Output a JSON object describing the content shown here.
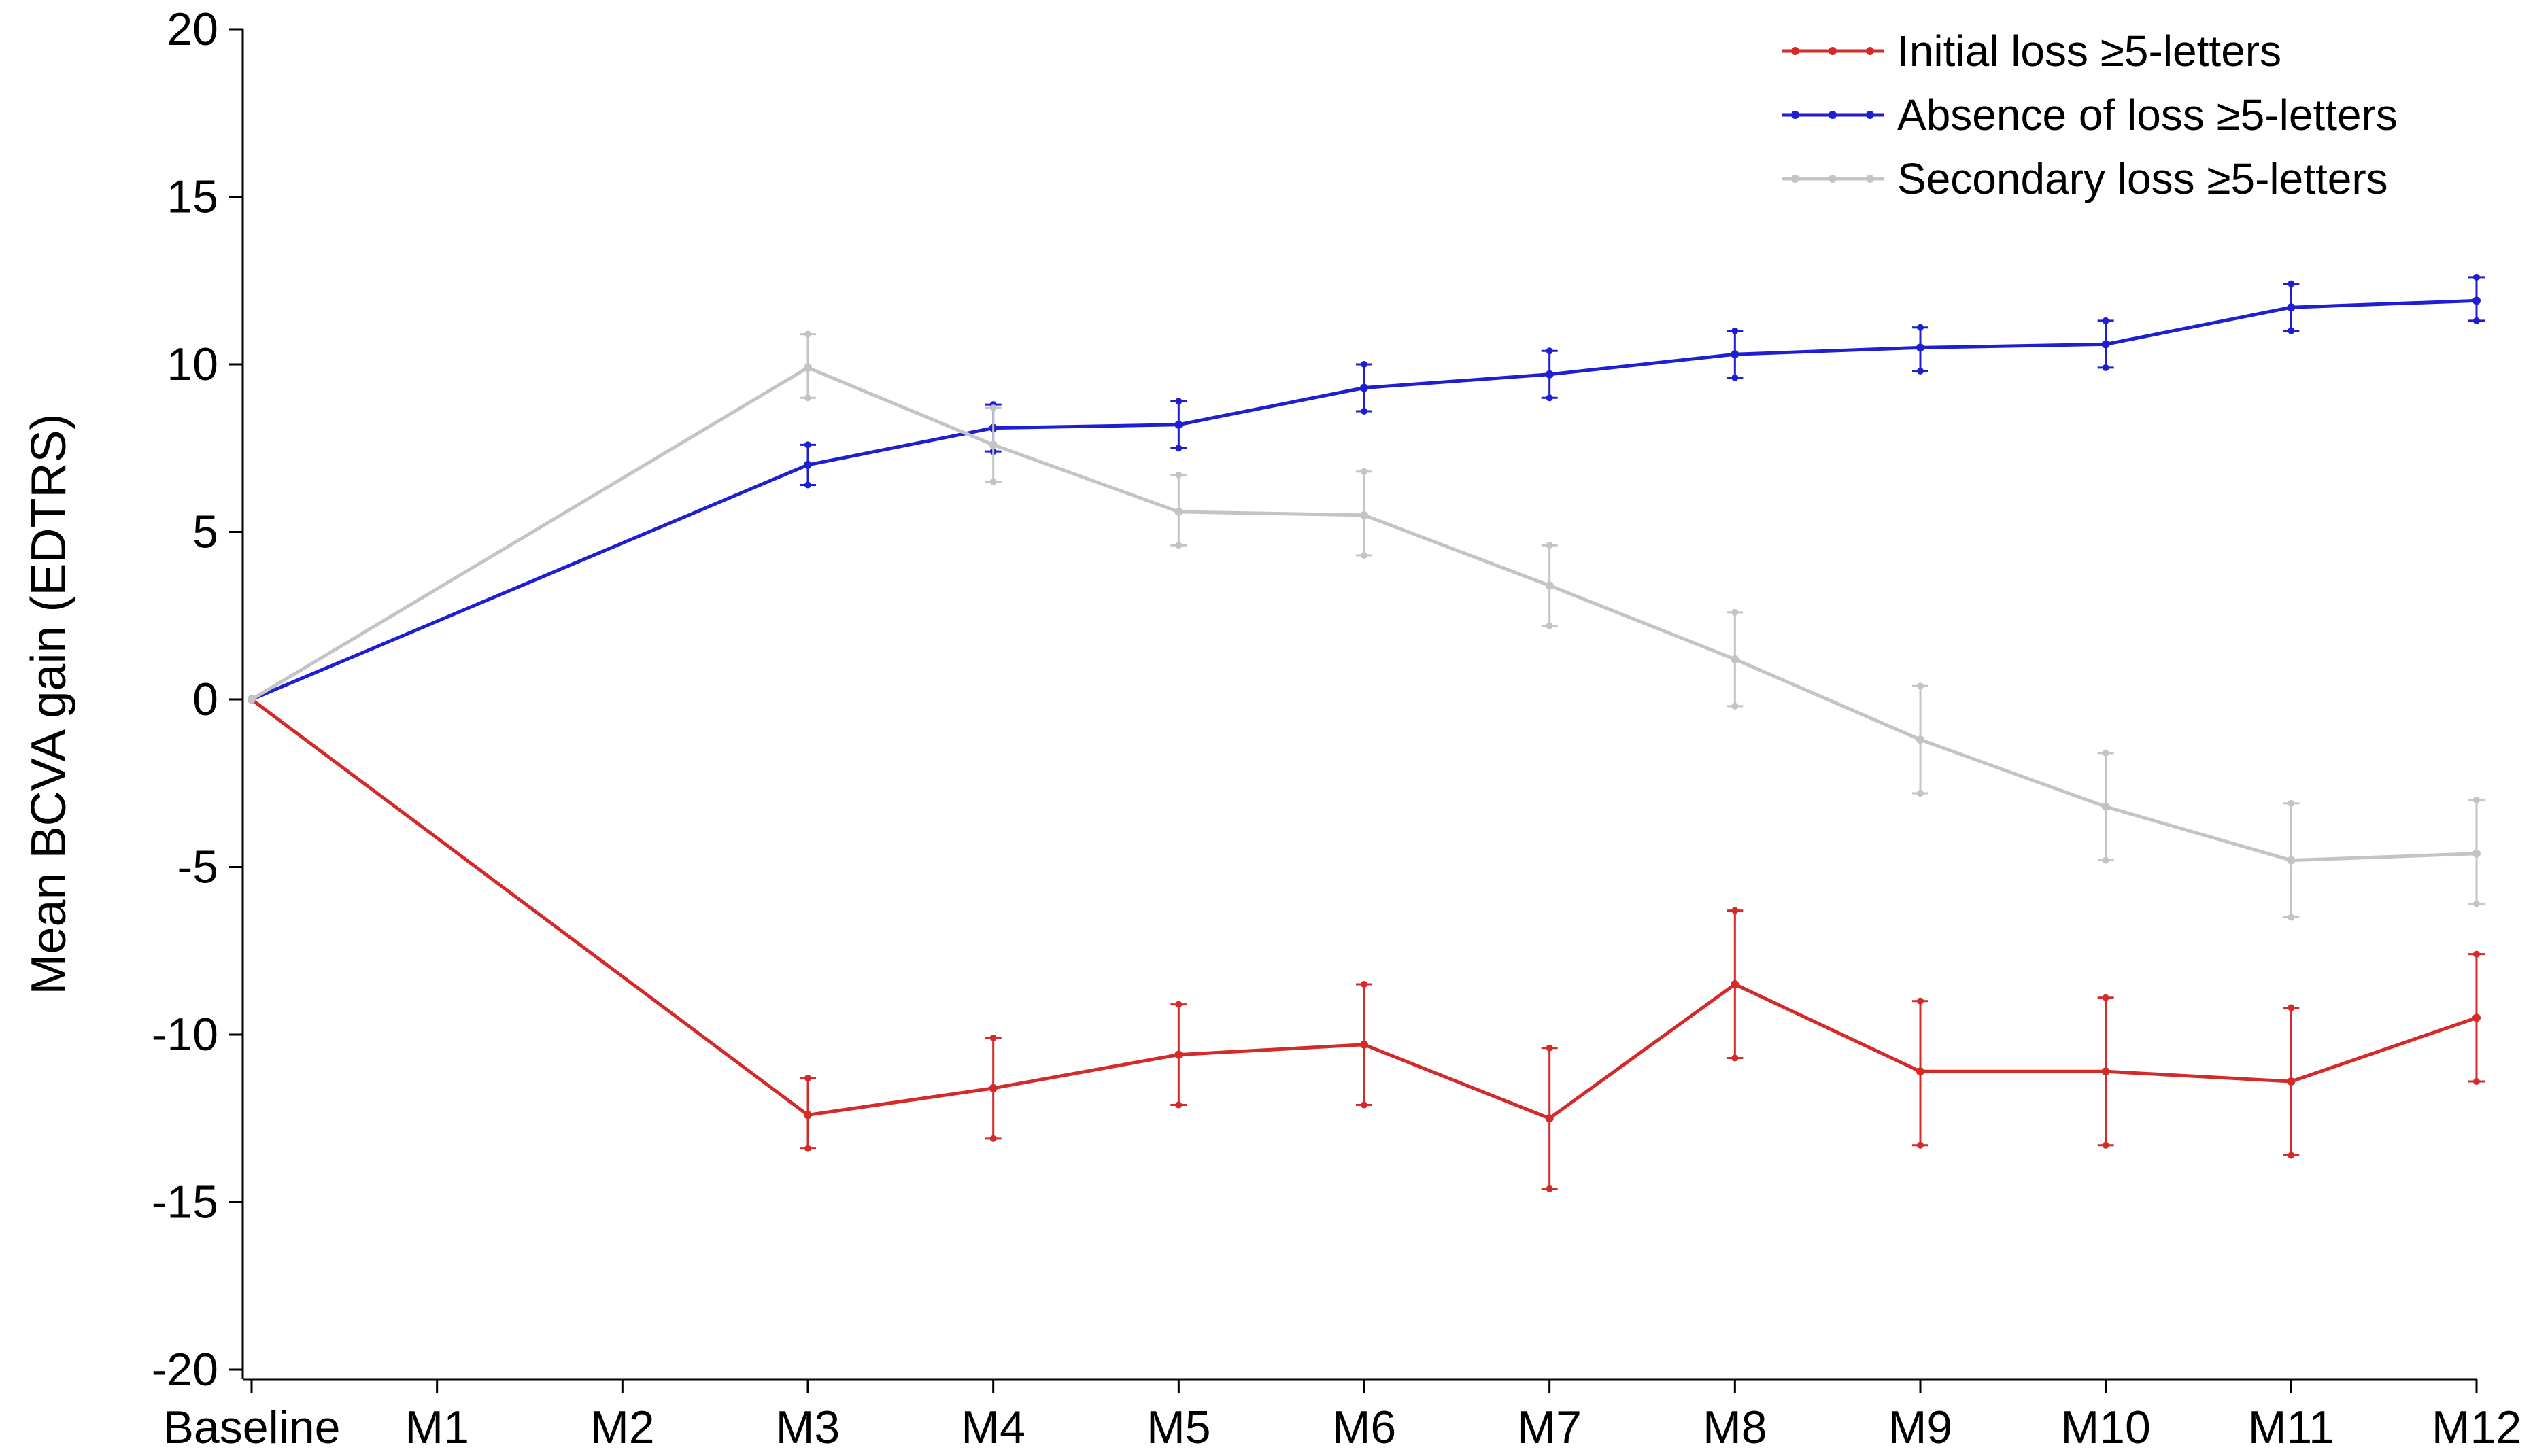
{
  "chart_data": {
    "type": "line",
    "title": "",
    "xlabel": "",
    "ylabel": "Mean BCVA gain (EDTRS)",
    "categories": [
      "Baseline",
      "M1",
      "M2",
      "M3",
      "M4",
      "M5",
      "M6",
      "M7",
      "M8",
      "M9",
      "M10",
      "M11",
      "M12"
    ],
    "yticks": [
      20,
      15,
      10,
      5,
      0,
      -5,
      -10,
      -15,
      -20
    ],
    "ytick_labels": [
      "20",
      "15",
      "10",
      "5",
      "0",
      "-5",
      "-10",
      "-15",
      "-20"
    ],
    "ylim": [
      -20,
      20
    ],
    "grid": false,
    "legend_position": "top-right",
    "series": [
      {
        "name": "Initial loss ≥5-letters",
        "color": "#d42a2a",
        "points": [
          {
            "x": "Baseline",
            "y": 0
          },
          {
            "x": "M3",
            "y": -12.4,
            "low": -13.4,
            "high": -11.3
          },
          {
            "x": "M4",
            "y": -11.6,
            "low": -13.1,
            "high": -10.1
          },
          {
            "x": "M5",
            "y": -10.6,
            "low": -12.1,
            "high": -9.1
          },
          {
            "x": "M6",
            "y": -10.3,
            "low": -12.1,
            "high": -8.5
          },
          {
            "x": "M7",
            "y": -12.5,
            "low": -14.6,
            "high": -10.4
          },
          {
            "x": "M8",
            "y": -8.5,
            "low": -10.7,
            "high": -6.3
          },
          {
            "x": "M9",
            "y": -11.1,
            "low": -13.3,
            "high": -9.0
          },
          {
            "x": "M10",
            "y": -11.1,
            "low": -13.3,
            "high": -8.9
          },
          {
            "x": "M11",
            "y": -11.4,
            "low": -13.6,
            "high": -9.2
          },
          {
            "x": "M12",
            "y": -9.5,
            "low": -11.4,
            "high": -7.6
          }
        ]
      },
      {
        "name": "Absence of loss ≥5-letters",
        "color": "#1f1fd1",
        "points": [
          {
            "x": "Baseline",
            "y": 0
          },
          {
            "x": "M3",
            "y": 7.0,
            "low": 6.4,
            "high": 7.6
          },
          {
            "x": "M4",
            "y": 8.1,
            "low": 7.4,
            "high": 8.8
          },
          {
            "x": "M5",
            "y": 8.2,
            "low": 7.5,
            "high": 8.9
          },
          {
            "x": "M6",
            "y": 9.3,
            "low": 8.6,
            "high": 10.0
          },
          {
            "x": "M7",
            "y": 9.7,
            "low": 9.0,
            "high": 10.4
          },
          {
            "x": "M8",
            "y": 10.3,
            "low": 9.6,
            "high": 11.0
          },
          {
            "x": "M9",
            "y": 10.5,
            "low": 9.8,
            "high": 11.1
          },
          {
            "x": "M10",
            "y": 10.6,
            "low": 9.9,
            "high": 11.3
          },
          {
            "x": "M11",
            "y": 11.7,
            "low": 11.0,
            "high": 12.4
          },
          {
            "x": "M12",
            "y": 11.9,
            "low": 11.3,
            "high": 12.6
          }
        ]
      },
      {
        "name": "Secondary loss ≥5-letters",
        "color": "#c4c4c4",
        "points": [
          {
            "x": "Baseline",
            "y": 0
          },
          {
            "x": "M3",
            "y": 9.9,
            "low": 9.0,
            "high": 10.9
          },
          {
            "x": "M4",
            "y": 7.6,
            "low": 6.5,
            "high": 8.7
          },
          {
            "x": "M5",
            "y": 5.6,
            "low": 4.6,
            "high": 6.7
          },
          {
            "x": "M6",
            "y": 5.5,
            "low": 4.3,
            "high": 6.8
          },
          {
            "x": "M7",
            "y": 3.4,
            "low": 2.2,
            "high": 4.6
          },
          {
            "x": "M8",
            "y": 1.2,
            "low": -0.2,
            "high": 2.6
          },
          {
            "x": "M9",
            "y": -1.2,
            "low": -2.8,
            "high": 0.4
          },
          {
            "x": "M10",
            "y": -3.2,
            "low": -4.8,
            "high": -1.6
          },
          {
            "x": "M11",
            "y": -4.8,
            "low": -6.5,
            "high": -3.1
          },
          {
            "x": "M12",
            "y": -4.6,
            "low": -6.1,
            "high": -3.0
          }
        ]
      }
    ]
  }
}
